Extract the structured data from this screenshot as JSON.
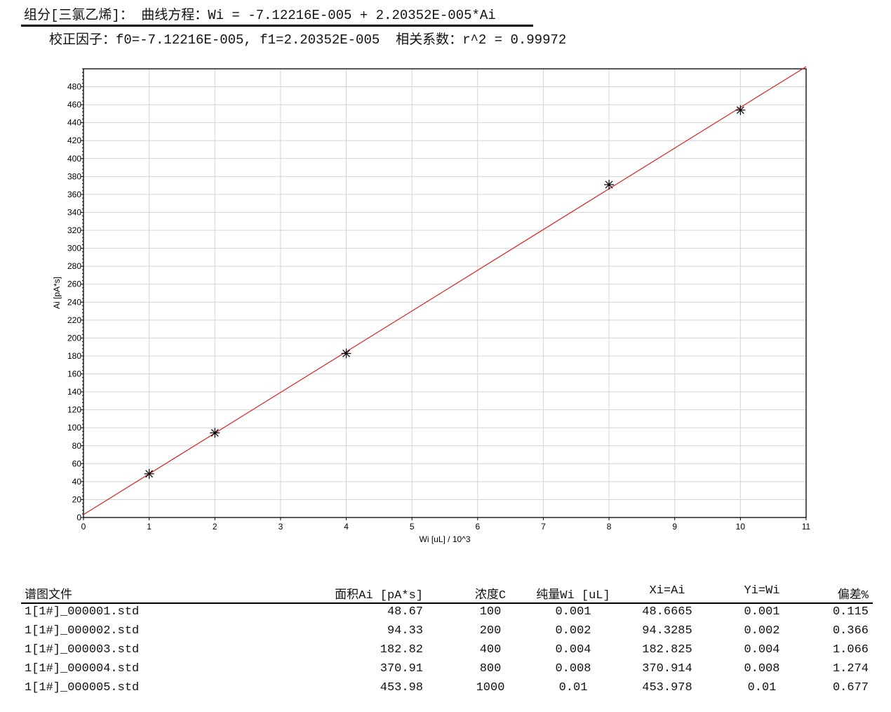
{
  "header": {
    "equation_line": "组分[三氯乙烯]： 曲线方程：Wi = -7.12216E-005 + 2.20352E-005*Ai",
    "factors_line": "校正因子：f0=-7.12216E-005, f1=2.20352E-005  相关系数：r^2 = 0.99972"
  },
  "chart_data": {
    "type": "scatter",
    "xlabel": "Wi [uL] / 10^3",
    "ylabel": "Ai [pA*s]",
    "xlim": [
      0,
      11
    ],
    "ylim": [
      0,
      500
    ],
    "x_ticks": [
      0,
      1,
      2,
      3,
      4,
      5,
      6,
      7,
      8,
      9,
      10,
      11
    ],
    "y_ticks": [
      0,
      20,
      40,
      60,
      80,
      100,
      120,
      140,
      160,
      180,
      200,
      220,
      240,
      260,
      280,
      300,
      320,
      340,
      360,
      380,
      400,
      420,
      440,
      460,
      480
    ],
    "grid": true,
    "points": {
      "x": [
        1,
        2,
        4,
        8,
        10
      ],
      "y": [
        48.67,
        94.33,
        182.82,
        370.91,
        453.98
      ],
      "marker": "asterisk",
      "color": "#000000"
    },
    "fit_line": {
      "y_at_x0": 3.23,
      "y_at_x11": 502.4,
      "color": "#e02020"
    }
  },
  "table": {
    "headers": [
      "谱图文件",
      "面积Ai [pA*s]",
      "浓度C",
      "纯量Wi [uL]",
      "Xi=Ai",
      "Yi=Wi",
      "偏差%"
    ],
    "rows": [
      [
        "1[1#]_000001.std",
        "48.67",
        "100",
        "0.001",
        "48.6665",
        "0.001",
        "0.115"
      ],
      [
        "1[1#]_000002.std",
        "94.33",
        "200",
        "0.002",
        "94.3285",
        "0.002",
        "0.366"
      ],
      [
        "1[1#]_000003.std",
        "182.82",
        "400",
        "0.004",
        "182.825",
        "0.004",
        "1.066"
      ],
      [
        "1[1#]_000004.std",
        "370.91",
        "800",
        "0.008",
        "370.914",
        "0.008",
        "1.274"
      ],
      [
        "1[1#]_000005.std",
        "453.98",
        "1000",
        "0.01",
        "453.978",
        "0.01",
        "0.677"
      ]
    ]
  }
}
